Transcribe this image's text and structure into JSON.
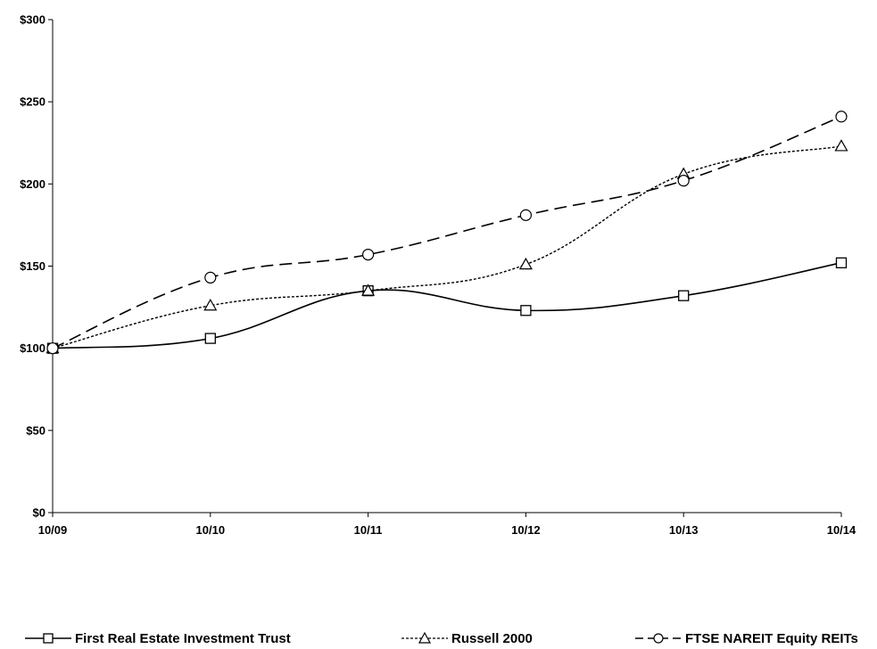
{
  "chart_data": {
    "type": "line",
    "title": "",
    "xlabel": "",
    "ylabel": "",
    "categories": [
      "10/09",
      "10/10",
      "10/11",
      "10/12",
      "10/13",
      "10/14"
    ],
    "y_ticks": [
      "$0",
      "$50",
      "$100",
      "$150",
      "$200",
      "$250",
      "$300"
    ],
    "ylim": [
      0,
      300
    ],
    "grid": false,
    "legend_position": "bottom",
    "series": [
      {
        "name": "First Real Estate Investment Trust",
        "values": [
          100,
          106,
          135,
          123,
          132,
          152
        ],
        "marker": "square",
        "line_style": "solid",
        "color": "#000000"
      },
      {
        "name": "Russell 2000",
        "values": [
          100,
          126,
          135,
          151,
          206,
          223
        ],
        "marker": "triangle",
        "line_style": "dotted",
        "color": "#000000"
      },
      {
        "name": "FTSE NAREIT Equity REITs",
        "values": [
          100,
          143,
          157,
          181,
          202,
          241
        ],
        "marker": "circle",
        "line_style": "dashed",
        "color": "#000000"
      }
    ]
  }
}
